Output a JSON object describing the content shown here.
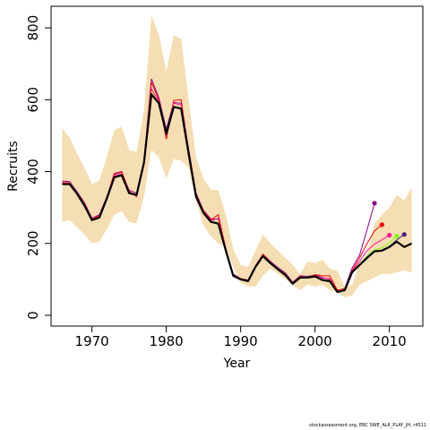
{
  "chart_data": {
    "type": "line",
    "xlabel": "Year",
    "ylabel": "Recruits",
    "xlim": [
      1964.5,
      2014.5
    ],
    "ylim": [
      -30,
      860
    ],
    "xticks": [
      1970,
      1980,
      1990,
      2000,
      2010
    ],
    "yticks": [
      0,
      200,
      400,
      600,
      800
    ],
    "grid": false,
    "colors": {
      "band": "#f5deb3",
      "main": "#000000",
      "retros": [
        "#8b008b",
        "#ff0000",
        "#ff1493",
        "#7cfc00",
        "#551a8b"
      ]
    },
    "band": {
      "x": [
        1966,
        1967,
        1968,
        1969,
        1970,
        1971,
        1972,
        1973,
        1974,
        1975,
        1976,
        1977,
        1978,
        1979,
        1980,
        1981,
        1982,
        1983,
        1984,
        1985,
        1986,
        1987,
        1988,
        1989,
        1990,
        1991,
        1992,
        1993,
        1994,
        1995,
        1996,
        1997,
        1998,
        1999,
        2000,
        2001,
        2002,
        2003,
        2004,
        2005,
        2006,
        2007,
        2008,
        2009,
        2010,
        2011,
        2012,
        2013
      ],
      "lower": [
        260,
        265,
        245,
        225,
        200,
        205,
        240,
        280,
        290,
        260,
        255,
        330,
        460,
        440,
        380,
        435,
        430,
        410,
        320,
        250,
        220,
        200,
        190,
        135,
        90,
        80,
        80,
        110,
        130,
        115,
        100,
        85,
        70,
        85,
        80,
        85,
        70,
        65,
        50,
        55,
        85,
        95,
        105,
        115,
        115,
        120,
        125,
        120
      ],
      "upper": [
        520,
        495,
        450,
        410,
        365,
        375,
        440,
        515,
        525,
        460,
        455,
        570,
        835,
        780,
        680,
        780,
        770,
        600,
        440,
        380,
        350,
        348,
        280,
        185,
        140,
        135,
        180,
        225,
        200,
        180,
        160,
        140,
        115,
        150,
        145,
        155,
        130,
        125,
        78,
        85,
        145,
        170,
        255,
        280,
        300,
        335,
        320,
        355
      ]
    },
    "series": [
      {
        "x": [
          1966,
          1967,
          1968,
          1969,
          1970,
          1971,
          1972,
          1973,
          1974,
          1975,
          1976,
          1977,
          1978,
          1979,
          1980,
          1981,
          1982,
          1983,
          1984,
          1985,
          1986,
          1987,
          1988,
          1989,
          1990,
          1991,
          1992,
          1993,
          1994,
          1995,
          1996,
          1997,
          1998,
          1999,
          2000,
          2001,
          2002,
          2003,
          2004,
          2005,
          2006,
          2007,
          2008,
          2009,
          2010,
          2011,
          2012,
          2013
        ],
        "values": [
          365,
          365,
          338,
          305,
          265,
          272,
          325,
          384,
          390,
          340,
          335,
          425,
          615,
          590,
          505,
          580,
          575,
          450,
          330,
          285,
          260,
          255,
          180,
          110,
          100,
          95,
          135,
          165,
          145,
          128,
          112,
          88,
          105,
          105,
          108,
          98,
          95,
          65,
          70,
          120,
          140,
          160,
          178,
          180,
          190,
          205,
          190,
          200
        ]
      },
      {
        "x": [
          1966,
          1967,
          1968,
          1969,
          1970,
          1971,
          1972,
          1973,
          1974,
          1975,
          1976,
          1977,
          1978,
          1979,
          1980,
          1981,
          1982,
          1983,
          1984,
          1985,
          1986,
          1987,
          1988,
          1989,
          1990,
          1991,
          1992,
          1993,
          1994,
          1995,
          1996,
          1997,
          1998,
          1999,
          2000,
          2001,
          2002,
          2003,
          2004,
          2005,
          2006,
          2007,
          2008
        ],
        "values": [
          374,
          372,
          344,
          313,
          270,
          280,
          330,
          392,
          398,
          348,
          340,
          430,
          658,
          605,
          518,
          592,
          590,
          463,
          340,
          292,
          268,
          268,
          187,
          115,
          102,
          98,
          138,
          170,
          150,
          133,
          118,
          92,
          110,
          108,
          112,
          105,
          100,
          68,
          75,
          132,
          168,
          238,
          312
        ]
      },
      {
        "x": [
          1966,
          1967,
          1968,
          1969,
          1970,
          1971,
          1972,
          1973,
          1974,
          1975,
          1976,
          1977,
          1978,
          1979,
          1980,
          1981,
          1982,
          1983,
          1984,
          1985,
          1986,
          1987,
          1988,
          1989,
          1990,
          1991,
          1992,
          1993,
          1994,
          1995,
          1996,
          1997,
          1998,
          1999,
          2000,
          2001,
          2002,
          2003,
          2004,
          2005,
          2006,
          2007,
          2008,
          2009
        ],
        "values": [
          370,
          368,
          340,
          310,
          268,
          277,
          328,
          395,
          400,
          345,
          330,
          430,
          648,
          600,
          490,
          598,
          600,
          455,
          335,
          290,
          265,
          280,
          185,
          112,
          102,
          97,
          138,
          170,
          148,
          130,
          115,
          90,
          108,
          106,
          113,
          110,
          110,
          70,
          73,
          125,
          160,
          200,
          235,
          252
        ]
      },
      {
        "x": [
          1966,
          1967,
          1968,
          1969,
          1970,
          1971,
          1972,
          1973,
          1974,
          1975,
          1976,
          1977,
          1978,
          1979,
          1980,
          1981,
          1982,
          1983,
          1984,
          1985,
          1986,
          1987,
          1988,
          1989,
          1990,
          1991,
          1992,
          1993,
          1994,
          1995,
          1996,
          1997,
          1998,
          1999,
          2000,
          2001,
          2002,
          2003,
          2004,
          2005,
          2006,
          2007,
          2008,
          2009,
          2010
        ],
        "values": [
          368,
          366,
          339,
          308,
          266,
          274,
          326,
          388,
          393,
          342,
          332,
          428,
          630,
          595,
          500,
          590,
          585,
          452,
          333,
          287,
          263,
          270,
          183,
          111,
          101,
          96,
          136,
          167,
          146,
          129,
          113,
          89,
          106,
          104,
          110,
          103,
          102,
          67,
          71,
          123,
          150,
          180,
          198,
          210,
          223
        ]
      },
      {
        "x": [
          1966,
          1967,
          1968,
          1969,
          1970,
          1971,
          1972,
          1973,
          1974,
          1975,
          1976,
          1977,
          1978,
          1979,
          1980,
          1981,
          1982,
          1983,
          1984,
          1985,
          1986,
          1987,
          1988,
          1989,
          1990,
          1991,
          1992,
          1993,
          1994,
          1995,
          1996,
          1997,
          1998,
          1999,
          2000,
          2001,
          2002,
          2003,
          2004,
          2005,
          2006,
          2007,
          2008,
          2009,
          2010,
          2011
        ],
        "values": [
          366,
          365,
          338,
          306,
          265,
          273,
          325,
          385,
          391,
          341,
          334,
          426,
          620,
          592,
          505,
          582,
          577,
          451,
          331,
          286,
          261,
          258,
          181,
          110,
          100,
          95,
          135,
          166,
          145,
          128,
          112,
          88,
          105,
          105,
          108,
          99,
          96,
          65,
          70,
          121,
          143,
          165,
          182,
          188,
          202,
          220
        ]
      },
      {
        "x": [
          1966,
          1967,
          1968,
          1969,
          1970,
          1971,
          1972,
          1973,
          1974,
          1975,
          1976,
          1977,
          1978,
          1979,
          1980,
          1981,
          1982,
          1983,
          1984,
          1985,
          1986,
          1987,
          1988,
          1989,
          1990,
          1991,
          1992,
          1993,
          1994,
          1995,
          1996,
          1997,
          1998,
          1999,
          2000,
          2001,
          2002,
          2003,
          2004,
          2005,
          2006,
          2007,
          2008,
          2009,
          2010,
          2011,
          2012
        ],
        "values": [
          365,
          365,
          338,
          305,
          265,
          272,
          325,
          384,
          390,
          340,
          335,
          425,
          617,
          590,
          505,
          580,
          575,
          450,
          330,
          285,
          260,
          255,
          180,
          110,
          100,
          95,
          135,
          165,
          145,
          128,
          112,
          88,
          105,
          105,
          108,
          98,
          95,
          65,
          70,
          120,
          140,
          160,
          178,
          180,
          192,
          210,
          225
        ]
      }
    ],
    "endpoints": [
      {
        "x": 2008,
        "y": 312
      },
      {
        "x": 2009,
        "y": 252
      },
      {
        "x": 2010,
        "y": 223
      },
      {
        "x": 2011,
        "y": 220
      },
      {
        "x": 2012,
        "y": 225
      }
    ]
  },
  "footer": {
    "text": "stockassessment.org, EBC SWE_ALK_PLAY_JH, r4511"
  }
}
